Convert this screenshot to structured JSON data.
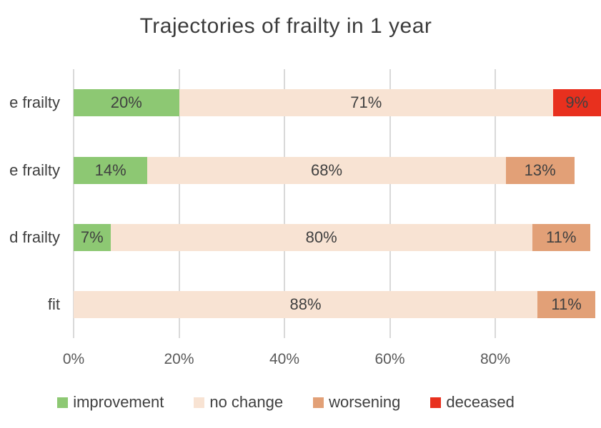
{
  "title": "Trajectories of frailty in 1 year",
  "chart_data": {
    "type": "bar",
    "variant": "horizontal-stacked",
    "title": "Trajectories of frailty in 1 year",
    "xlabel": "",
    "ylabel": "",
    "xlim": [
      0,
      100
    ],
    "x_tick_values": [
      0,
      20,
      40,
      60,
      80
    ],
    "x_tick_labels": [
      "0%",
      "20%",
      "40%",
      "60%",
      "80%"
    ],
    "grid": "vertical",
    "legend_position": "bottom",
    "data_labels": true,
    "series_colors": {
      "improvement": "#8DC873",
      "no change": "#F8E3D3",
      "worsening": "#E2A077",
      "deceased": "#E8301E"
    },
    "rows": [
      {
        "category": "e frailty",
        "segments": [
          {
            "series": "improvement",
            "value": 20,
            "label": "20%"
          },
          {
            "series": "no change",
            "value": 71,
            "label": "71%"
          },
          {
            "series": "deceased",
            "value": 9,
            "label": "9%"
          }
        ]
      },
      {
        "category": "e frailty",
        "segments": [
          {
            "series": "improvement",
            "value": 14,
            "label": "14%"
          },
          {
            "series": "no change",
            "value": 68,
            "label": "68%"
          },
          {
            "series": "worsening",
            "value": 13,
            "label": "13%"
          }
        ]
      },
      {
        "category": "d frailty",
        "segments": [
          {
            "series": "improvement",
            "value": 7,
            "label": "7%"
          },
          {
            "series": "no change",
            "value": 80,
            "label": "80%"
          },
          {
            "series": "worsening",
            "value": 11,
            "label": "11%"
          }
        ]
      },
      {
        "category": "fit",
        "segments": [
          {
            "series": "no change",
            "value": 88,
            "label": "88%"
          },
          {
            "series": "worsening",
            "value": 11,
            "label": "11%"
          }
        ]
      }
    ]
  },
  "legend": {
    "items": [
      {
        "label": "improvement",
        "color": "#8DC873"
      },
      {
        "label": "no change",
        "color": "#F8E3D3"
      },
      {
        "label": "worsening",
        "color": "#E2A077"
      },
      {
        "label": "deceased",
        "color": "#E8301E"
      }
    ]
  }
}
